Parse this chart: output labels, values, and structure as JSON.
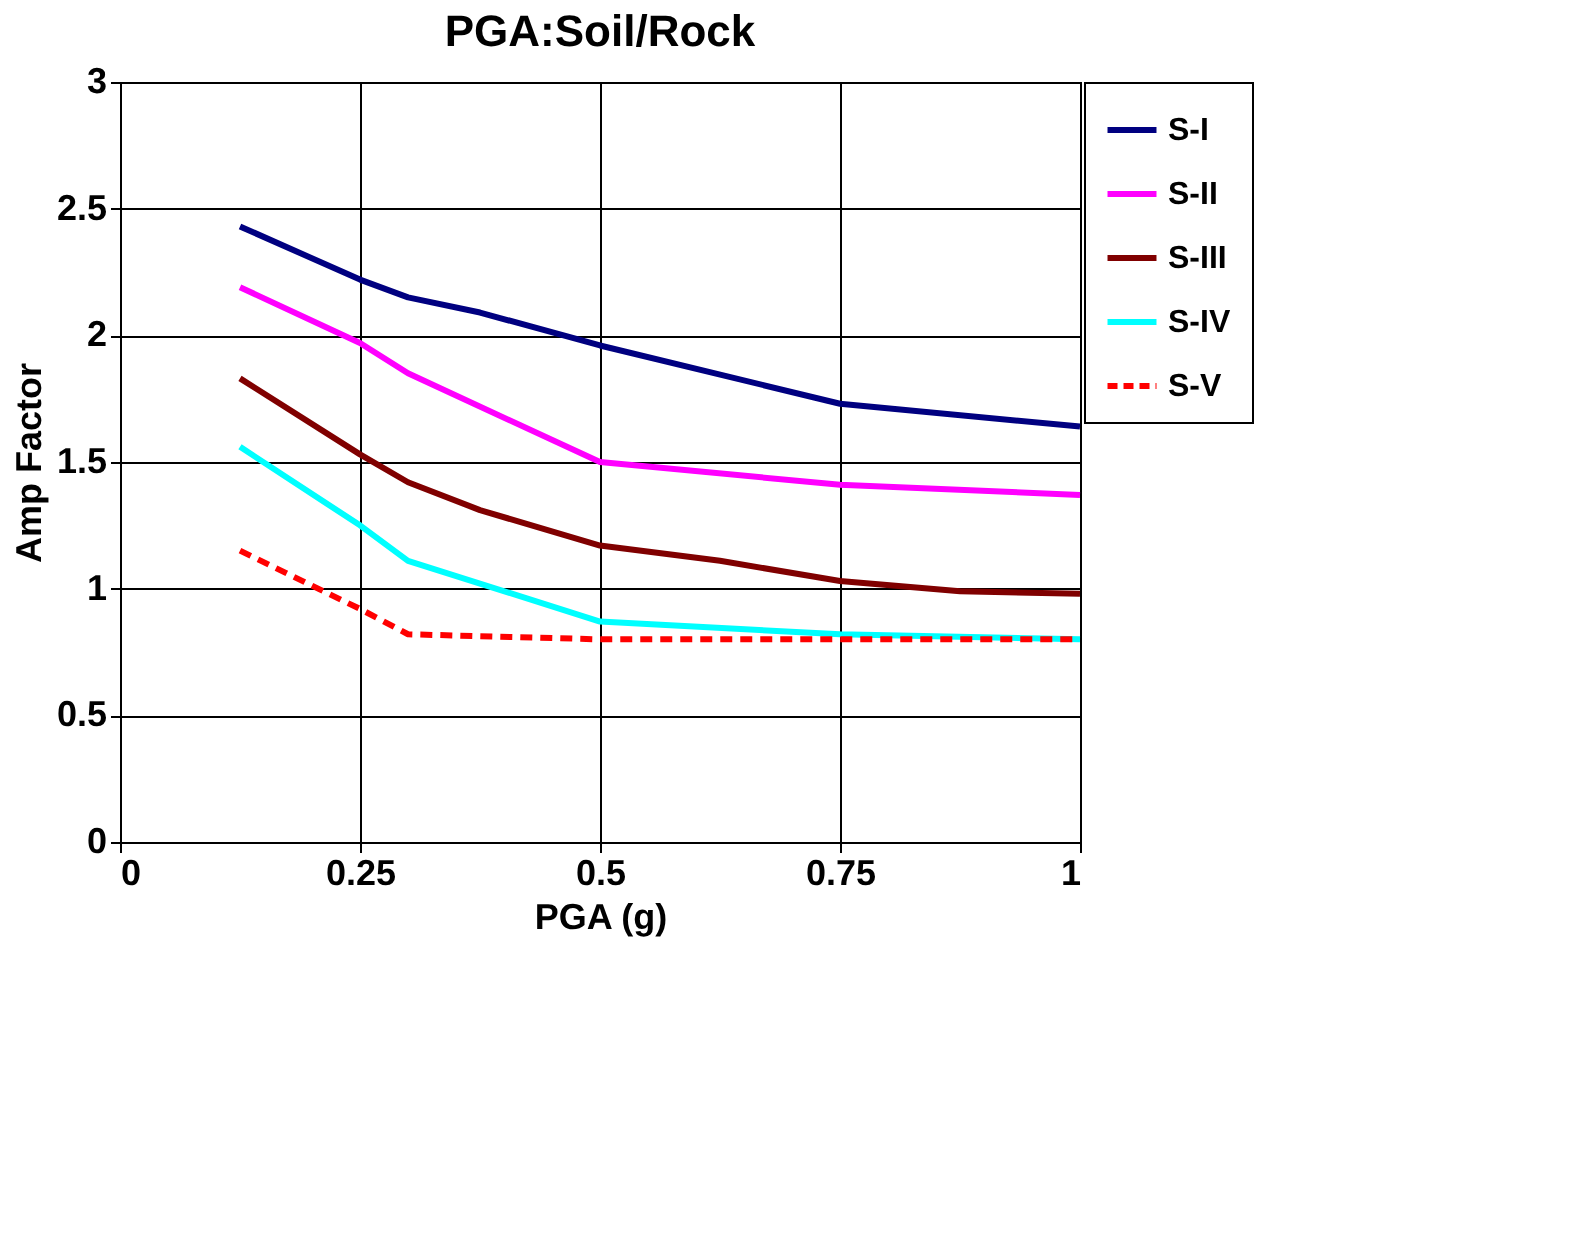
{
  "chart_data": {
    "type": "line",
    "title": "PGA:Soil/Rock",
    "xlabel": "PGA (g)",
    "ylabel": "Amp Factor",
    "xlim": [
      0,
      1
    ],
    "xticks": [
      0,
      0.25,
      0.5,
      0.75,
      1
    ],
    "ylim": [
      0,
      3
    ],
    "yticks": [
      0,
      0.5,
      1,
      1.5,
      2,
      2.5,
      3
    ],
    "grid": true,
    "legend": "top right",
    "marker": "none",
    "series": [
      {
        "name": "S-I",
        "color": "#000080",
        "x": [
          0.125,
          0.25,
          0.3,
          0.375,
          0.5,
          0.75,
          1
        ],
        "values": [
          2.43,
          2.22,
          2.15,
          2.09,
          1.96,
          1.73,
          1.64
        ]
      },
      {
        "name": "S-II",
        "color": "#ff00ff",
        "x": [
          0.125,
          0.25,
          0.3,
          0.5,
          0.75,
          1
        ],
        "values": [
          2.19,
          1.97,
          1.85,
          1.5,
          1.41,
          1.37
        ]
      },
      {
        "name": "S-III",
        "color": "#800000",
        "x": [
          0.125,
          0.25,
          0.3,
          0.375,
          0.5,
          0.625,
          0.75,
          0.875,
          1
        ],
        "values": [
          1.83,
          1.53,
          1.42,
          1.31,
          1.17,
          1.11,
          1.03,
          0.99,
          0.98
        ]
      },
      {
        "name": "S-IV",
        "color": "#00ffff",
        "x": [
          0.125,
          0.25,
          0.3,
          0.5,
          0.75,
          1
        ],
        "values": [
          1.56,
          1.25,
          1.11,
          0.87,
          0.82,
          0.8
        ]
      },
      {
        "name": "S-V",
        "color": "#ff0000",
        "line_style": "dashed",
        "x": [
          0.125,
          0.25,
          0.3,
          0.5,
          1
        ],
        "values": [
          1.15,
          0.92,
          0.82,
          0.8,
          0.8
        ]
      }
    ]
  }
}
